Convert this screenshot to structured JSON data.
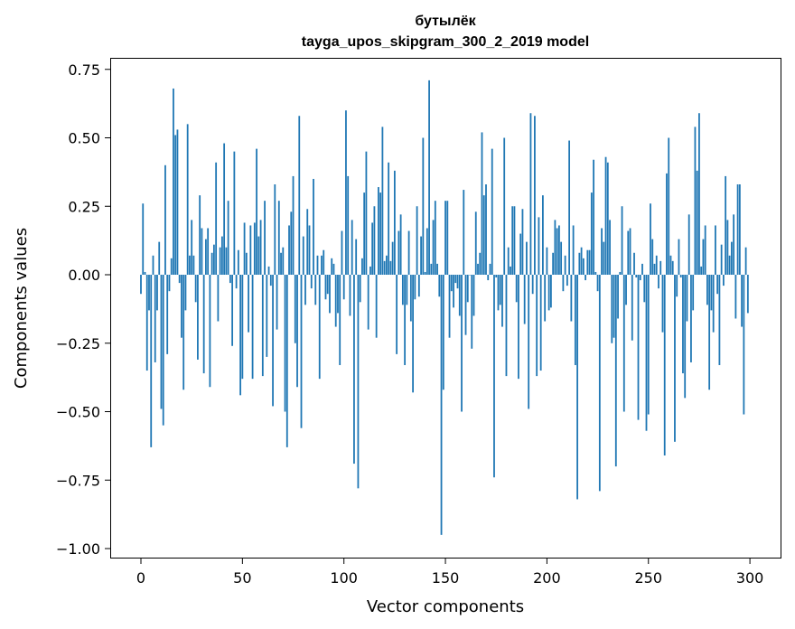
{
  "chart_data": {
    "type": "bar",
    "title_line1": "бутылёк",
    "title_line2": "tayga_upos_skipgram_300_2_2019 model",
    "xlabel": "Vector components",
    "ylabel": "Components values",
    "xlim": [
      -15,
      315
    ],
    "ylim": [
      -1.03,
      0.79
    ],
    "xticks": [
      0,
      50,
      100,
      150,
      200,
      250,
      300
    ],
    "xtick_labels": [
      "0",
      "50",
      "100",
      "150",
      "200",
      "250",
      "300"
    ],
    "yticks": [
      0.75,
      0.5,
      0.25,
      0.0,
      -0.25,
      -0.5,
      -0.75,
      -1.0
    ],
    "ytick_labels": [
      "0.75",
      "0.50",
      "0.25",
      "0.00",
      "−0.25",
      "−0.50",
      "−0.75",
      "−1.00"
    ],
    "grid": false,
    "bar_color": "#1f77b4",
    "values": [
      -0.07,
      0.26,
      0.01,
      -0.35,
      -0.13,
      -0.63,
      0.07,
      -0.32,
      -0.13,
      0.12,
      -0.49,
      -0.55,
      0.4,
      -0.29,
      -0.06,
      0.06,
      0.68,
      0.51,
      0.53,
      -0.03,
      -0.23,
      -0.42,
      -0.13,
      0.55,
      0.07,
      0.2,
      0.07,
      -0.1,
      -0.31,
      0.29,
      0.17,
      -0.36,
      0.13,
      0.17,
      -0.41,
      0.08,
      0.11,
      0.41,
      -0.17,
      0.1,
      0.14,
      0.48,
      0.1,
      0.27,
      -0.03,
      -0.26,
      0.45,
      -0.05,
      0.09,
      -0.44,
      -0.38,
      0.19,
      0.08,
      -0.21,
      0.18,
      -0.38,
      0.19,
      0.46,
      0.14,
      0.2,
      -0.37,
      0.27,
      -0.3,
      0.03,
      -0.04,
      -0.48,
      0.33,
      -0.2,
      0.27,
      0.08,
      0.1,
      -0.5,
      -0.63,
      0.18,
      0.23,
      0.36,
      -0.25,
      -0.41,
      0.58,
      -0.56,
      0.14,
      -0.11,
      0.24,
      0.18,
      -0.05,
      0.35,
      -0.11,
      0.07,
      -0.38,
      0.07,
      0.09,
      -0.09,
      -0.07,
      -0.14,
      0.06,
      0.04,
      -0.19,
      -0.14,
      -0.33,
      0.16,
      -0.09,
      0.6,
      0.36,
      -0.15,
      0.2,
      -0.69,
      0.13,
      -0.78,
      -0.1,
      0.06,
      0.3,
      0.45,
      -0.2,
      0.03,
      0.19,
      0.25,
      -0.23,
      0.32,
      0.3,
      0.54,
      0.05,
      0.07,
      0.41,
      0.05,
      0.12,
      0.38,
      -0.29,
      0.16,
      0.22,
      -0.11,
      -0.33,
      -0.11,
      0.16,
      -0.17,
      -0.43,
      -0.09,
      0.25,
      -0.08,
      0.14,
      0.5,
      0.01,
      0.17,
      0.71,
      0.04,
      0.2,
      0.27,
      0.04,
      -0.08,
      -0.95,
      -0.42,
      0.27,
      0.27,
      -0.23,
      -0.06,
      -0.12,
      -0.03,
      -0.05,
      -0.15,
      -0.5,
      0.31,
      -0.22,
      -0.1,
      0.0,
      -0.27,
      -0.15,
      0.23,
      0.04,
      0.08,
      0.52,
      0.29,
      0.33,
      -0.02,
      0.04,
      0.46,
      -0.74,
      -0.01,
      -0.13,
      -0.11,
      -0.19,
      0.5,
      -0.37,
      0.1,
      0.03,
      0.25,
      0.25,
      -0.1,
      -0.38,
      0.15,
      0.24,
      -0.18,
      0.12,
      -0.49,
      0.59,
      -0.07,
      0.58,
      -0.37,
      0.21,
      -0.35,
      0.29,
      -0.17,
      0.1,
      -0.13,
      -0.12,
      0.08,
      0.2,
      0.17,
      0.18,
      0.12,
      -0.06,
      0.07,
      -0.04,
      0.49,
      -0.17,
      0.18,
      -0.33,
      -0.82,
      0.08,
      0.1,
      0.06,
      -0.02,
      0.09,
      0.09,
      0.3,
      0.42,
      0.01,
      -0.06,
      -0.79,
      0.17,
      0.12,
      0.43,
      0.41,
      0.2,
      -0.25,
      -0.23,
      -0.7,
      -0.16,
      0.01,
      0.25,
      -0.5,
      -0.11,
      0.16,
      0.17,
      -0.24,
      0.08,
      -0.01,
      -0.53,
      -0.02,
      0.04,
      -0.1,
      -0.57,
      -0.51,
      0.26,
      0.13,
      0.04,
      0.07,
      -0.05,
      0.05,
      -0.21,
      -0.66,
      0.37,
      0.5,
      0.07,
      0.05,
      -0.61,
      -0.08,
      0.13,
      -0.01,
      -0.36,
      -0.45,
      -0.17,
      0.22,
      -0.32,
      -0.13,
      0.54,
      0.38,
      0.59,
      0.03,
      0.13,
      0.18,
      -0.11,
      -0.42,
      -0.13,
      -0.21,
      0.18,
      -0.07,
      -0.33,
      0.11,
      -0.04,
      0.36,
      0.2,
      0.07,
      0.12,
      0.22,
      -0.16,
      0.33,
      0.33,
      -0.19,
      -0.51,
      0.1,
      -0.14
    ]
  }
}
